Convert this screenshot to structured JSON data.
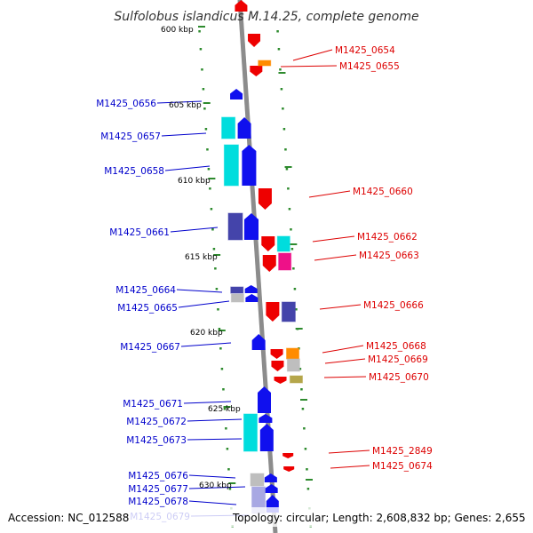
{
  "title": "Sulfolobus islandicus M.14.25, complete genome",
  "footer": {
    "accession": "Accession: NC_012588",
    "details": "Topology: circular; Length: 2,608,832 bp; Genes: 2,655"
  },
  "colors": {
    "backbone": "#8c8c8c",
    "tick": "#2e8b2e",
    "left_label": "#0000cc",
    "right_label": "#dd0000",
    "blue": "#1010ee",
    "cyan": "#00dddd",
    "red": "#ee0000",
    "orange": "#ff8c00",
    "magenta": "#ee1188",
    "slate": "#4444aa",
    "grey": "#b8b8b8",
    "khaki": "#b5a64a",
    "lavender": "#9f9fe0"
  },
  "position_ticks": [
    "600 kbp",
    "605 kbp",
    "610 kbp",
    "615 kbp",
    "620 kbp",
    "625 kbp",
    "630 kbp"
  ],
  "left_labels": [
    "M1425_0656",
    "M1425_0657",
    "M1425_0658",
    "M1425_0661",
    "M1425_0664",
    "M1425_0665",
    "M1425_0667",
    "M1425_0671",
    "M1425_0672",
    "M1425_0673",
    "M1425_0676",
    "M1425_0677",
    "M1425_0678",
    "M1425_0679"
  ],
  "right_labels": [
    "M1425_0654",
    "M1425_0655",
    "M1425_0660",
    "M1425_0662",
    "M1425_0663",
    "M1425_0666",
    "M1425_0668",
    "M1425_0669",
    "M1425_0670",
    "M1425_2849",
    "M1425_0674"
  ],
  "features": [
    {
      "strand": "+",
      "color": "red",
      "shape": "up-arrow"
    },
    {
      "strand": "-",
      "color": "red",
      "shape": "down-arrow"
    },
    {
      "strand": "-",
      "color": "red",
      "shape": "down-arrow"
    },
    {
      "strand": "-",
      "color": "orange",
      "shape": "box"
    },
    {
      "strand": "+",
      "color": "blue",
      "shape": "up-arrow"
    },
    {
      "strand": "+",
      "color": "cyan",
      "shape": "box"
    },
    {
      "strand": "+",
      "color": "blue",
      "shape": "up-arrow"
    },
    {
      "strand": "+",
      "color": "cyan",
      "shape": "box"
    },
    {
      "strand": "+",
      "color": "blue",
      "shape": "up-arrow"
    },
    {
      "strand": "-",
      "color": "red",
      "shape": "down-arrow"
    },
    {
      "strand": "+",
      "color": "slate",
      "shape": "box"
    },
    {
      "strand": "+",
      "color": "blue",
      "shape": "up-arrow"
    },
    {
      "strand": "-",
      "color": "red",
      "shape": "down-arrow"
    },
    {
      "strand": "-",
      "color": "cyan",
      "shape": "box"
    },
    {
      "strand": "-",
      "color": "red",
      "shape": "down-arrow"
    },
    {
      "strand": "-",
      "color": "magenta",
      "shape": "box"
    },
    {
      "strand": "+",
      "color": "slate",
      "shape": "box"
    },
    {
      "strand": "+",
      "color": "blue",
      "shape": "up-arrow"
    },
    {
      "strand": "+",
      "color": "grey",
      "shape": "box"
    },
    {
      "strand": "+",
      "color": "blue",
      "shape": "up-arrow"
    },
    {
      "strand": "-",
      "color": "red",
      "shape": "down-arrow"
    },
    {
      "strand": "-",
      "color": "slate",
      "shape": "box"
    },
    {
      "strand": "+",
      "color": "blue",
      "shape": "up-arrow"
    },
    {
      "strand": "-",
      "color": "red",
      "shape": "down-arrow"
    },
    {
      "strand": "-",
      "color": "orange",
      "shape": "box"
    },
    {
      "strand": "-",
      "color": "red",
      "shape": "down-arrow"
    },
    {
      "strand": "-",
      "color": "grey",
      "shape": "box"
    },
    {
      "strand": "-",
      "color": "red",
      "shape": "down-arrow"
    },
    {
      "strand": "-",
      "color": "khaki",
      "shape": "box"
    },
    {
      "strand": "+",
      "color": "blue",
      "shape": "up-arrow"
    },
    {
      "strand": "+",
      "color": "blue",
      "shape": "up-arrow"
    },
    {
      "strand": "+",
      "color": "cyan",
      "shape": "box"
    },
    {
      "strand": "+",
      "color": "blue",
      "shape": "up-arrow"
    },
    {
      "strand": "-",
      "color": "red",
      "shape": "down-arrow"
    },
    {
      "strand": "-",
      "color": "red",
      "shape": "down-arrow"
    },
    {
      "strand": "+",
      "color": "grey",
      "shape": "box"
    },
    {
      "strand": "+",
      "color": "blue",
      "shape": "up-arrow"
    },
    {
      "strand": "+",
      "color": "lavender",
      "shape": "box"
    },
    {
      "strand": "+",
      "color": "blue",
      "shape": "up-arrow"
    },
    {
      "strand": "+",
      "color": "blue",
      "shape": "up-arrow"
    }
  ]
}
